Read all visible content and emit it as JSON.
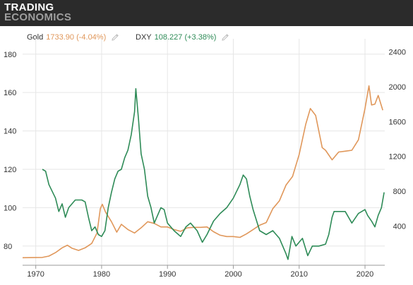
{
  "logo": {
    "line1": "TRADING",
    "line2": "ECONOMICS"
  },
  "legend": [
    {
      "name": "Gold",
      "value": "1733.90 (-4.04%)",
      "color": "#e0975a",
      "icon": "pencil-icon"
    },
    {
      "name": "DXY",
      "value": "108.227 (+3.38%)",
      "color": "#2e8b57",
      "icon": "pencil-icon"
    }
  ],
  "chart_data": {
    "type": "line",
    "x_ticks": [
      "1970",
      "1980",
      "1990",
      "2000",
      "2010",
      "2020"
    ],
    "y_left_ticks": [
      "80",
      "100",
      "120",
      "140",
      "160",
      "180"
    ],
    "y_right_ticks": [
      "400",
      "800",
      "1200",
      "1600",
      "2000",
      "2400"
    ],
    "xlim": [
      1968,
      2023
    ],
    "ylim_left": [
      70,
      188
    ],
    "ylim_right": [
      -50,
      2550
    ],
    "grid": true,
    "legend_position": "top-left",
    "series": [
      {
        "name": "Gold",
        "axis": "right",
        "color": "#e0975a",
        "x": [
          1968,
          1971,
          1972,
          1973,
          1974,
          1974.8,
          1975.5,
          1976.5,
          1977.5,
          1978.5,
          1979.3,
          1979.8,
          1980.1,
          1980.6,
          1981.5,
          1982.3,
          1983,
          1984,
          1985,
          1986,
          1987,
          1988,
          1989,
          1990,
          1991,
          1992,
          1993,
          1994,
          1995,
          1996,
          1997,
          1998,
          1999,
          2000,
          2001,
          2002,
          2003,
          2004,
          2005,
          2006,
          2007,
          2008,
          2009,
          2010,
          2011,
          2011.7,
          2012.5,
          2013.5,
          2014,
          2015,
          2016,
          2017,
          2018,
          2019,
          2020,
          2020.6,
          2021,
          2021.5,
          2022,
          2022.7
        ],
        "y": [
          37,
          40,
          55,
          95,
          150,
          180,
          145,
          120,
          150,
          200,
          320,
          600,
          650,
          560,
          450,
          330,
          420,
          360,
          320,
          380,
          450,
          430,
          390,
          390,
          360,
          340,
          380,
          385,
          385,
          390,
          335,
          295,
          280,
          280,
          270,
          310,
          360,
          410,
          440,
          600,
          690,
          870,
          970,
          1220,
          1570,
          1750,
          1670,
          1300,
          1270,
          1160,
          1250,
          1260,
          1270,
          1390,
          1750,
          2010,
          1790,
          1800,
          1900,
          1730
        ]
      },
      {
        "name": "DXY",
        "axis": "left",
        "color": "#2e8b57",
        "x": [
          1971,
          1971.5,
          1972,
          1973,
          1973.5,
          1974,
          1974.5,
          1975,
          1975.5,
          1976,
          1977,
          1977.5,
          1978,
          1978.5,
          1979,
          1979.5,
          1980,
          1980.5,
          1981,
          1981.5,
          1982,
          1982.5,
          1983,
          1983.5,
          1984,
          1984.5,
          1985,
          1985.2,
          1985.6,
          1986,
          1986.5,
          1987,
          1987.5,
          1988,
          1988.5,
          1989,
          1989.5,
          1990,
          1991,
          1992,
          1992.8,
          1993.5,
          1994.5,
          1995.3,
          1996,
          1997,
          1998,
          1999,
          2000,
          2001,
          2001.5,
          2002,
          2002.5,
          2003,
          2004,
          2005,
          2006,
          2007,
          2008,
          2008.3,
          2008.9,
          2009.5,
          2010,
          2010.5,
          2011.3,
          2012,
          2013,
          2014,
          2014.5,
          2015,
          2015.3,
          2016,
          2017,
          2018,
          2019,
          2020,
          2020.4,
          2021,
          2021.5,
          2022,
          2022.5,
          2022.9
        ],
        "y": [
          120,
          119,
          112,
          105,
          98,
          102,
          95,
          100,
          102,
          104,
          104,
          103,
          95,
          88,
          90,
          86,
          85,
          88,
          100,
          108,
          115,
          119,
          120,
          126,
          130,
          138,
          150,
          162,
          146,
          128,
          120,
          106,
          100,
          92,
          96,
          100,
          99,
          92,
          88,
          85,
          90,
          92,
          88,
          82,
          86,
          93,
          97,
          100,
          105,
          112,
          117,
          115,
          106,
          99,
          88,
          86,
          88,
          84,
          76,
          73,
          85,
          80,
          82,
          84,
          75,
          80,
          80,
          81,
          86,
          95,
          98,
          98,
          98,
          92,
          97,
          99,
          96,
          93,
          90,
          96,
          100,
          108
        ]
      }
    ]
  }
}
